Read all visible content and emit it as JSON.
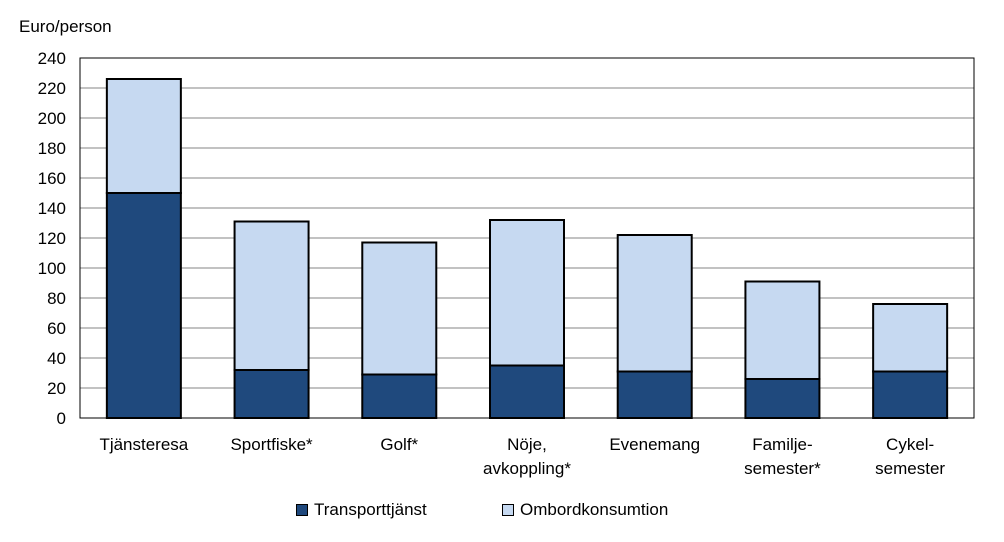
{
  "chart_data": {
    "type": "bar",
    "stacked": true,
    "ylabel": "Euro/person",
    "ylim": [
      0,
      240
    ],
    "yticks": [
      0,
      20,
      40,
      60,
      80,
      100,
      120,
      140,
      160,
      180,
      200,
      220,
      240
    ],
    "grid": true,
    "legend_position": "bottom",
    "categories": [
      [
        "Tjänsteresa"
      ],
      [
        "Sportfiske*"
      ],
      [
        "Golf*"
      ],
      [
        "Nöje,",
        "avkoppling*"
      ],
      [
        "Evenemang"
      ],
      [
        "Familje-",
        "semester*"
      ],
      [
        "Cykel-",
        "semester"
      ]
    ],
    "series": [
      {
        "name": "Transporttjänst",
        "color": "#1f497d",
        "values": [
          150,
          32,
          29,
          35,
          31,
          26,
          31
        ]
      },
      {
        "name": "Ombordkonsumtion",
        "color": "#c6d9f1",
        "values": [
          76,
          99,
          88,
          97,
          91,
          65,
          45
        ]
      }
    ]
  }
}
